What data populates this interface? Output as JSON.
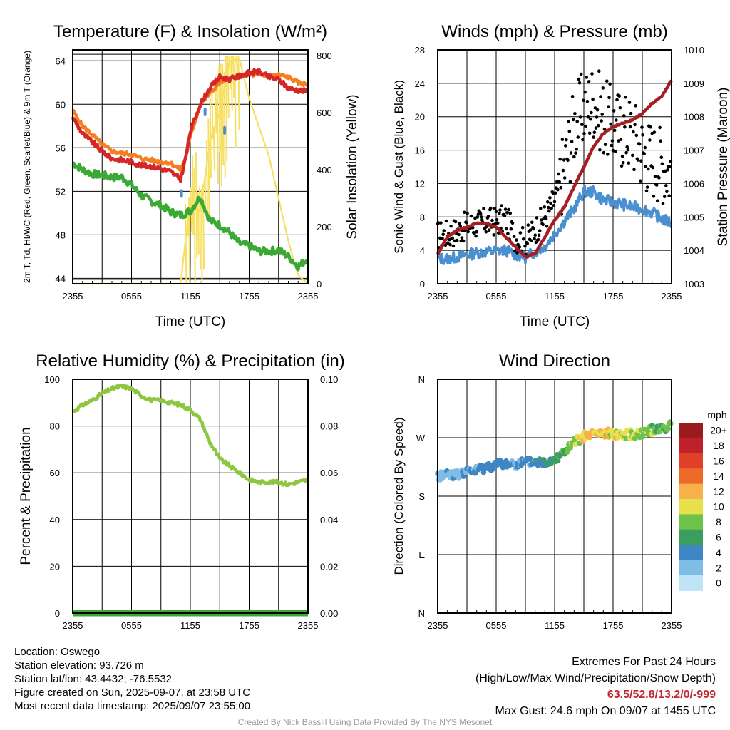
{
  "station": {
    "location_line": "Location: Oswego",
    "elevation_line": "Station elevation: 93.726 m",
    "latlon_line": "Station lat/lon: 43.4432; -76.5532",
    "created_line": "Figure created on Sun, 2025-09-07, at 23:58 UTC",
    "recent_line": "Most recent data timestamp: 2025/09/07 23:55:00"
  },
  "extremes": {
    "heading": "Extremes For Past 24 Hours",
    "subheading": "(High/Low/Max Wind/Precipitation/Snow Depth)",
    "values": "63.5/52.8/13.2/0/-999",
    "max_gust": "Max Gust: 24.6 mph On 09/07 at 1455 UTC"
  },
  "credit": "Created By Nick Bassill Using Data Provided By The NYS Mesonet",
  "colors": {
    "temperature": "#d62728",
    "temperature_9m": "#f57f20",
    "dewpoint": "#3ba935",
    "heat_index": "#4a90d0",
    "solar": "#f7e060",
    "wind": "#4a90d0",
    "gust": "#000000",
    "pressure": "#a31f23",
    "humidity": "#8dc63f",
    "precip": "#3ba935"
  },
  "chart_data": [
    {
      "type": "line",
      "title": "Temperature (F) & Insolation (W/m²)",
      "xlabel": "Time (UTC)",
      "ylabel": "2m T, Td, HI/WC (Red, Green, Scarlet/Blue) & 9m T (Orange)",
      "ylabel2": "Solar Insolation (Yellow)",
      "xticks": [
        "2355",
        "0555",
        "1155",
        "1755",
        "2355"
      ],
      "yticks": [
        "44",
        "48",
        "52",
        "56",
        "60",
        "64"
      ],
      "yticks2": [
        "0",
        "200",
        "400",
        "600",
        "800"
      ],
      "ylim": [
        43.5,
        65
      ],
      "ylim2": [
        0,
        820
      ],
      "x_hours": [
        0,
        1,
        2,
        3,
        4,
        5,
        6,
        7,
        8,
        9,
        10,
        11,
        11.5,
        12,
        13,
        14,
        15,
        16,
        17,
        18,
        19,
        20,
        21,
        22,
        23,
        24
      ],
      "series": [
        {
          "key": "t9m",
          "values": [
            59.4,
            58,
            57.2,
            56.3,
            55.7,
            55.5,
            55.4,
            55,
            54.9,
            54.7,
            54.6,
            54,
            55,
            57,
            60,
            61,
            62,
            62.4,
            62.6,
            62.7,
            62.7,
            62.6,
            62.7,
            62.5,
            62,
            61.8
          ]
        },
        {
          "key": "t2m",
          "values": [
            58.8,
            57.3,
            56.5,
            55.7,
            55,
            54.9,
            54.7,
            54.4,
            54.3,
            54.1,
            53.8,
            53.1,
            55,
            57.5,
            60,
            61.5,
            62.5,
            62.3,
            62.6,
            62.9,
            63,
            62.5,
            62.3,
            61.5,
            61.3,
            61.2
          ]
        },
        {
          "key": "td",
          "values": [
            54.6,
            54,
            53.6,
            53.5,
            53.3,
            53.3,
            52.6,
            51.6,
            51.1,
            50.7,
            50.1,
            49.8,
            50,
            50.2,
            51.5,
            49.3,
            48.9,
            48.2,
            47.2,
            47,
            46.5,
            46.5,
            46.6,
            46,
            45.1,
            45.8
          ]
        },
        {
          "key": "solar",
          "values": [
            0,
            0,
            0,
            0,
            0,
            0,
            0,
            0,
            0,
            0,
            0,
            0,
            150,
            300,
            250,
            500,
            600,
            780,
            790,
            650,
            550,
            450,
            300,
            150,
            30,
            0
          ]
        }
      ],
      "heat_index_points": [
        {
          "x": 11.1,
          "y": 51.8
        },
        {
          "x": 13.5,
          "y": 59.3
        },
        {
          "x": 15.5,
          "y": 57.6
        }
      ]
    },
    {
      "type": "line",
      "title": "Winds (mph) & Pressure (mb)",
      "xlabel": "Time (UTC)",
      "ylabel": "Sonic Wind & Gust (Blue, Black)",
      "ylabel2": "Station Pressure (Maroon)",
      "xticks": [
        "2355",
        "0555",
        "1155",
        "1755",
        "2355"
      ],
      "yticks": [
        "0",
        "4",
        "8",
        "12",
        "16",
        "20",
        "24",
        "28"
      ],
      "yticks2": [
        "1003",
        "1004",
        "1005",
        "1006",
        "1007",
        "1008",
        "1009",
        "1010"
      ],
      "ylim": [
        0,
        28
      ],
      "ylim2": [
        1003,
        1010
      ],
      "x_hours": [
        0,
        1,
        2,
        3,
        4,
        5,
        6,
        7,
        8,
        9,
        10,
        11,
        12,
        13,
        14,
        15,
        16,
        17,
        18,
        19,
        20,
        21,
        22,
        23,
        24
      ],
      "series": [
        {
          "key": "wind",
          "values": [
            3,
            3,
            3.2,
            3.5,
            3.7,
            3.8,
            3.9,
            4,
            3.5,
            3.2,
            3.8,
            4.5,
            6,
            7.5,
            9,
            11,
            11,
            10,
            9.8,
            9.5,
            9.2,
            9,
            8.5,
            7.8,
            7.2
          ]
        },
        {
          "key": "gust",
          "values": [
            5.8,
            6,
            6.3,
            7,
            7.2,
            7.4,
            7.5,
            7.8,
            5.5,
            5,
            6.5,
            8,
            10,
            14,
            19,
            21,
            22,
            20,
            19,
            18.5,
            18,
            16,
            15,
            14.5,
            13.5
          ]
        },
        {
          "key": "pressure",
          "values": [
            1003.9,
            1004.4,
            1004.6,
            1004.7,
            1004.8,
            1004.8,
            1004.7,
            1004.4,
            1004.1,
            1003.8,
            1003.9,
            1004.4,
            1004.9,
            1005.3,
            1005.9,
            1006.5,
            1007.1,
            1007.5,
            1007.7,
            1007.8,
            1007.9,
            1008.1,
            1008.4,
            1008.6,
            1009.1
          ]
        }
      ]
    },
    {
      "type": "line",
      "title": "Relative Humidity (%) & Precipitation (in)",
      "xlabel": "",
      "ylabel": "Percent & Precipitation",
      "xticks": [
        "2355",
        "0555",
        "1155",
        "1755",
        "2355"
      ],
      "yticks": [
        "0",
        "20",
        "40",
        "60",
        "80",
        "100"
      ],
      "yticks2": [
        "0.00",
        "0.02",
        "0.04",
        "0.06",
        "0.08",
        "0.10"
      ],
      "ylim": [
        0,
        100
      ],
      "ylim2": [
        0,
        0.1
      ],
      "x_hours": [
        0,
        1,
        2,
        3,
        4,
        5,
        6,
        7,
        8,
        9,
        10,
        11,
        12,
        13,
        14,
        15,
        16,
        17,
        18,
        19,
        20,
        21,
        22,
        23,
        24
      ],
      "series": [
        {
          "key": "rh",
          "values": [
            86,
            89,
            91,
            94,
            96,
            97,
            96,
            93,
            91,
            91,
            90,
            89,
            87,
            83,
            73,
            66,
            63,
            60,
            57,
            56,
            56,
            56,
            55,
            56,
            57
          ]
        },
        {
          "key": "precip",
          "values": [
            0,
            0,
            0,
            0,
            0,
            0,
            0,
            0,
            0,
            0,
            0,
            0,
            0,
            0,
            0,
            0,
            0,
            0,
            0,
            0,
            0,
            0,
            0,
            0,
            0
          ]
        }
      ]
    },
    {
      "type": "scatter",
      "title": "Wind Direction",
      "ylabel": "Direction (Colored By Speed)",
      "xticks": [
        "2355",
        "0555",
        "1155",
        "1755",
        "2355"
      ],
      "yticks": [
        "N",
        "E",
        "S",
        "W",
        "N"
      ],
      "ylim": [
        0,
        360
      ],
      "x_hours": [
        0,
        1,
        2,
        3,
        4,
        5,
        6,
        7,
        8,
        9,
        10,
        11,
        12,
        13,
        14,
        15,
        16,
        17,
        18,
        19,
        20,
        21,
        22,
        23,
        24
      ],
      "direction_deg": [
        210,
        215,
        212,
        218,
        220,
        225,
        228,
        230,
        230,
        232,
        233,
        232,
        238,
        248,
        262,
        272,
        276,
        276,
        276,
        276,
        275,
        278,
        282,
        285,
        288
      ],
      "speed_mph": [
        2,
        2,
        2.5,
        3,
        3.5,
        4,
        4,
        4,
        3,
        3,
        4,
        4.5,
        6,
        7,
        9,
        11,
        11,
        10,
        10,
        9.5,
        9,
        9,
        8,
        7,
        7
      ],
      "colorbar": {
        "title": "mph",
        "labels": [
          "0",
          "2",
          "4",
          "6",
          "8",
          "10",
          "12",
          "14",
          "16",
          "18",
          "20+"
        ],
        "colors": [
          "#bfe4f5",
          "#7fbde6",
          "#3f86c4",
          "#3b9e5e",
          "#6cc24a",
          "#e8e04a",
          "#f8b04a",
          "#ef6a2a",
          "#e0402a",
          "#c0202a",
          "#9a1b1e"
        ]
      }
    }
  ]
}
